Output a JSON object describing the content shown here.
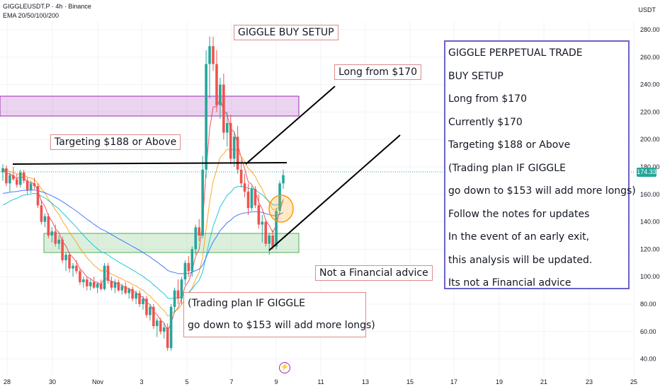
{
  "header": {
    "symbol_line": "GIGGLEUSDT.P · 4h · Binance",
    "ema_line": "EMA 20/50/100/200"
  },
  "currency": "USDT",
  "current_price_label": "174.33",
  "colors": {
    "up": "#26a69a",
    "down": "#ef5350",
    "resistance_zone": "#9c27b0",
    "support_zone": "#4caf50"
  },
  "annotations": {
    "title": "GIGGLE BUY SETUP",
    "long_from": "Long from $170",
    "targeting": "Targeting $188 or Above",
    "not_advice": "Not a Financial advice"
  },
  "plan_note": [
    "(Trading plan IF GIGGLE",
    "go down to $153 will add more longs)"
  ],
  "info_box": [
    "GIGGLE PERPETUAL TRADE",
    "BUY SETUP",
    "Long from $170",
    "Currently $170",
    "Targeting $188 or Above",
    "(Trading plan IF GIGGLE",
    "go down to $153 will add more longs)",
    "Follow the notes for updates",
    "In the event of an early exit,",
    "this analysis will be updated.",
    "Its not a Financial advice"
  ],
  "chart_data": {
    "type": "candlestick",
    "y_ticks": [
      "280.00",
      "260.00",
      "240.00",
      "220.00",
      "200.00",
      "180.00",
      "160.00",
      "140.00",
      "120.00",
      "100.00",
      "80.00",
      "60.00",
      "40.00"
    ],
    "x_ticks": [
      "28",
      "30",
      "Nov",
      "3",
      "5",
      "7",
      "9",
      "11",
      "13",
      "15",
      "17",
      "19",
      "21",
      "23",
      "25"
    ],
    "ylim": [
      30,
      290
    ],
    "last_price": 174.33,
    "resistance_zone": [
      215,
      230
    ],
    "support_zone": [
      115,
      130
    ],
    "horizontal_level": 180,
    "candles": [
      {
        "o": 176,
        "h": 182,
        "l": 170,
        "c": 179
      },
      {
        "o": 179,
        "h": 181,
        "l": 166,
        "c": 168
      },
      {
        "o": 168,
        "h": 176,
        "l": 162,
        "c": 174
      },
      {
        "o": 174,
        "h": 180,
        "l": 170,
        "c": 171
      },
      {
        "o": 171,
        "h": 175,
        "l": 165,
        "c": 167
      },
      {
        "o": 167,
        "h": 178,
        "l": 165,
        "c": 176
      },
      {
        "o": 176,
        "h": 178,
        "l": 168,
        "c": 170
      },
      {
        "o": 170,
        "h": 172,
        "l": 160,
        "c": 163
      },
      {
        "o": 163,
        "h": 170,
        "l": 161,
        "c": 168
      },
      {
        "o": 168,
        "h": 172,
        "l": 164,
        "c": 166
      },
      {
        "o": 166,
        "h": 168,
        "l": 150,
        "c": 152
      },
      {
        "o": 152,
        "h": 156,
        "l": 138,
        "c": 140
      },
      {
        "o": 140,
        "h": 146,
        "l": 136,
        "c": 144
      },
      {
        "o": 144,
        "h": 146,
        "l": 128,
        "c": 130
      },
      {
        "o": 130,
        "h": 136,
        "l": 125,
        "c": 133
      },
      {
        "o": 133,
        "h": 138,
        "l": 122,
        "c": 124
      },
      {
        "o": 124,
        "h": 130,
        "l": 120,
        "c": 127
      },
      {
        "o": 127,
        "h": 129,
        "l": 110,
        "c": 112
      },
      {
        "o": 112,
        "h": 118,
        "l": 104,
        "c": 116
      },
      {
        "o": 116,
        "h": 118,
        "l": 103,
        "c": 106
      },
      {
        "o": 106,
        "h": 110,
        "l": 100,
        "c": 108
      },
      {
        "o": 108,
        "h": 112,
        "l": 102,
        "c": 104
      },
      {
        "o": 104,
        "h": 106,
        "l": 94,
        "c": 96
      },
      {
        "o": 96,
        "h": 100,
        "l": 92,
        "c": 98
      },
      {
        "o": 98,
        "h": 100,
        "l": 90,
        "c": 93
      },
      {
        "o": 93,
        "h": 98,
        "l": 90,
        "c": 96
      },
      {
        "o": 96,
        "h": 100,
        "l": 91,
        "c": 92
      },
      {
        "o": 92,
        "h": 96,
        "l": 88,
        "c": 95
      },
      {
        "o": 95,
        "h": 98,
        "l": 90,
        "c": 91
      },
      {
        "o": 91,
        "h": 110,
        "l": 90,
        "c": 108
      },
      {
        "o": 108,
        "h": 110,
        "l": 95,
        "c": 97
      },
      {
        "o": 97,
        "h": 100,
        "l": 90,
        "c": 92
      },
      {
        "o": 92,
        "h": 98,
        "l": 88,
        "c": 96
      },
      {
        "o": 96,
        "h": 98,
        "l": 89,
        "c": 90
      },
      {
        "o": 90,
        "h": 95,
        "l": 87,
        "c": 93
      },
      {
        "o": 93,
        "h": 96,
        "l": 87,
        "c": 88
      },
      {
        "o": 88,
        "h": 92,
        "l": 84,
        "c": 91
      },
      {
        "o": 91,
        "h": 93,
        "l": 82,
        "c": 84
      },
      {
        "o": 84,
        "h": 90,
        "l": 80,
        "c": 88
      },
      {
        "o": 88,
        "h": 90,
        "l": 78,
        "c": 80
      },
      {
        "o": 80,
        "h": 86,
        "l": 76,
        "c": 84
      },
      {
        "o": 84,
        "h": 86,
        "l": 70,
        "c": 72
      },
      {
        "o": 72,
        "h": 80,
        "l": 68,
        "c": 78
      },
      {
        "o": 78,
        "h": 80,
        "l": 62,
        "c": 64
      },
      {
        "o": 64,
        "h": 70,
        "l": 56,
        "c": 68
      },
      {
        "o": 68,
        "h": 70,
        "l": 58,
        "c": 60
      },
      {
        "o": 60,
        "h": 66,
        "l": 55,
        "c": 63
      },
      {
        "o": 63,
        "h": 66,
        "l": 46,
        "c": 48
      },
      {
        "o": 48,
        "h": 80,
        "l": 46,
        "c": 78
      },
      {
        "o": 78,
        "h": 92,
        "l": 74,
        "c": 90
      },
      {
        "o": 90,
        "h": 98,
        "l": 80,
        "c": 84
      },
      {
        "o": 84,
        "h": 100,
        "l": 80,
        "c": 98
      },
      {
        "o": 98,
        "h": 112,
        "l": 94,
        "c": 110
      },
      {
        "o": 110,
        "h": 115,
        "l": 100,
        "c": 104
      },
      {
        "o": 104,
        "h": 122,
        "l": 100,
        "c": 120
      },
      {
        "o": 120,
        "h": 138,
        "l": 116,
        "c": 136
      },
      {
        "o": 136,
        "h": 142,
        "l": 126,
        "c": 130
      },
      {
        "o": 130,
        "h": 188,
        "l": 128,
        "c": 178
      },
      {
        "o": 178,
        "h": 265,
        "l": 172,
        "c": 255
      },
      {
        "o": 255,
        "h": 275,
        "l": 230,
        "c": 268
      },
      {
        "o": 268,
        "h": 275,
        "l": 250,
        "c": 255
      },
      {
        "o": 255,
        "h": 265,
        "l": 220,
        "c": 225
      },
      {
        "o": 225,
        "h": 245,
        "l": 215,
        "c": 240
      },
      {
        "o": 240,
        "h": 248,
        "l": 200,
        "c": 205
      },
      {
        "o": 205,
        "h": 220,
        "l": 195,
        "c": 212
      },
      {
        "o": 212,
        "h": 218,
        "l": 182,
        "c": 186
      },
      {
        "o": 186,
        "h": 206,
        "l": 180,
        "c": 202
      },
      {
        "o": 202,
        "h": 210,
        "l": 175,
        "c": 178
      },
      {
        "o": 178,
        "h": 185,
        "l": 165,
        "c": 168
      },
      {
        "o": 168,
        "h": 175,
        "l": 158,
        "c": 162
      },
      {
        "o": 162,
        "h": 168,
        "l": 145,
        "c": 150
      },
      {
        "o": 150,
        "h": 166,
        "l": 148,
        "c": 164
      },
      {
        "o": 164,
        "h": 166,
        "l": 150,
        "c": 152
      },
      {
        "o": 152,
        "h": 160,
        "l": 135,
        "c": 138
      },
      {
        "o": 138,
        "h": 145,
        "l": 125,
        "c": 140
      },
      {
        "o": 140,
        "h": 142,
        "l": 122,
        "c": 124
      },
      {
        "o": 124,
        "h": 132,
        "l": 116,
        "c": 130
      },
      {
        "o": 130,
        "h": 134,
        "l": 120,
        "c": 122
      },
      {
        "o": 122,
        "h": 150,
        "l": 120,
        "c": 148
      },
      {
        "o": 148,
        "h": 170,
        "l": 145,
        "c": 168
      },
      {
        "o": 168,
        "h": 178,
        "l": 164,
        "c": 174
      }
    ],
    "ema": [
      {
        "name": "EMA 20",
        "color": "#f23645"
      },
      {
        "name": "EMA 50",
        "color": "#ff9800"
      },
      {
        "name": "EMA 100",
        "color": "#00bcd4"
      },
      {
        "name": "EMA 200",
        "color": "#2962ff"
      }
    ]
  }
}
